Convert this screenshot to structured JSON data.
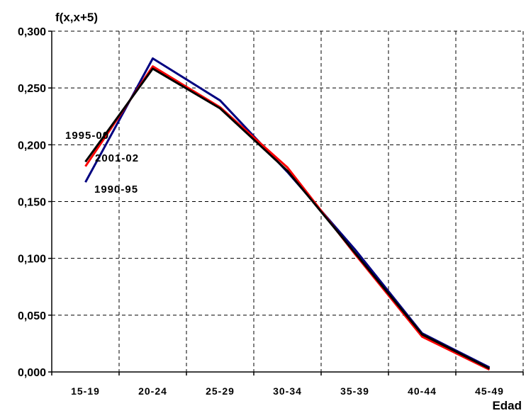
{
  "chart_data": {
    "type": "line",
    "title": "",
    "ylabel": "f(x,x+5)",
    "xlabel": "Edad",
    "categories": [
      "15-19",
      "20-24",
      "25-29",
      "30-34",
      "35-39",
      "40-44",
      "45-49"
    ],
    "ylim": [
      0,
      0.3
    ],
    "yticks": [
      0,
      0.05,
      0.1,
      0.15,
      0.2,
      0.25,
      0.3
    ],
    "ytick_labels": [
      "0,000",
      "0,050",
      "0,100",
      "0,150",
      "0,200",
      "0,250",
      "0,300"
    ],
    "grid": true,
    "series": [
      {
        "name": "1990-95",
        "color": "#000080",
        "values": [
          0.167,
          0.276,
          0.239,
          0.176,
          0.108,
          0.034,
          0.004
        ]
      },
      {
        "name": "1995-00",
        "color": "#000000",
        "values": [
          0.185,
          0.267,
          0.232,
          0.177,
          0.105,
          0.033,
          0.003
        ]
      },
      {
        "name": "2001-02",
        "color": "#ff0000",
        "values": [
          0.181,
          0.269,
          0.233,
          0.18,
          0.104,
          0.031,
          0.002
        ]
      }
    ]
  }
}
